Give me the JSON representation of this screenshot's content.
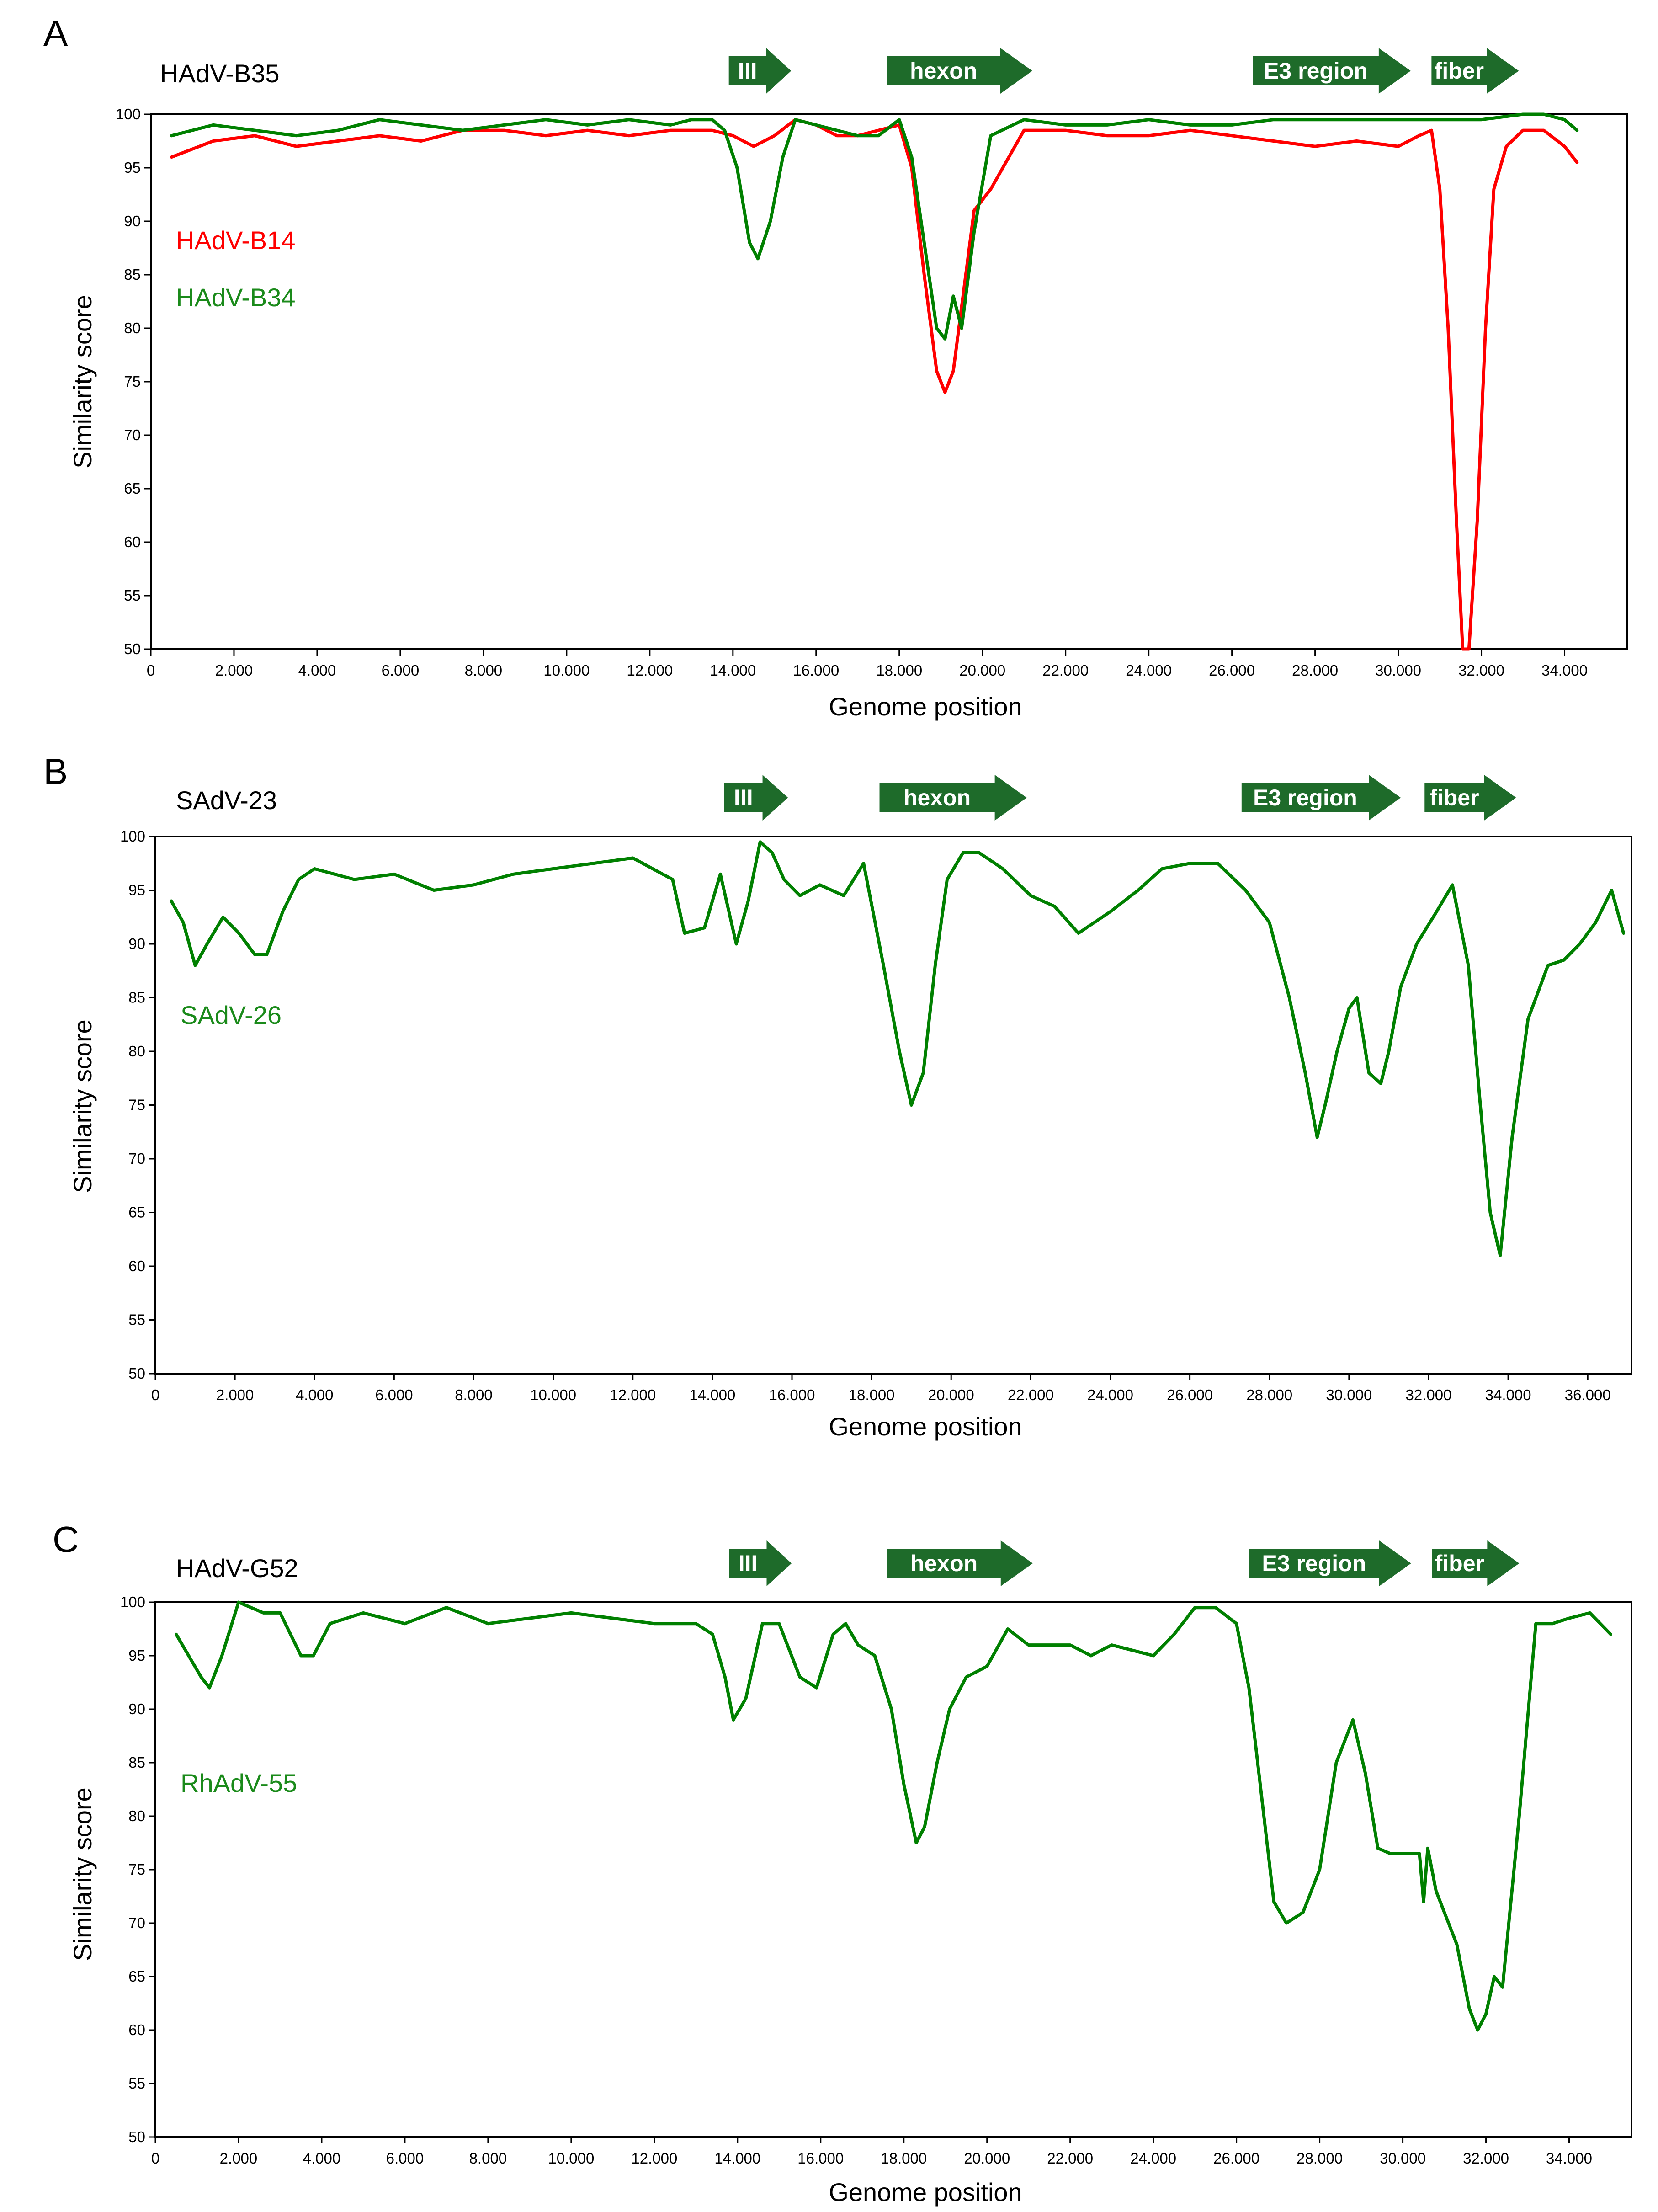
{
  "chart_data": [
    {
      "type": "line",
      "panel": "A",
      "reference": "HAdV-B35",
      "xlabel": "Genome position",
      "ylabel": "Similarity score",
      "xlim": [
        0,
        35500
      ],
      "ylim": [
        50,
        100
      ],
      "x_ticks": [
        "0",
        "2.000",
        "4.000",
        "6.000",
        "8.000",
        "10.000",
        "12.000",
        "14.000",
        "16.000",
        "18.000",
        "20.000",
        "22.000",
        "24.000",
        "26.000",
        "28.000",
        "30.000",
        "32.000",
        "34.000"
      ],
      "y_ticks": [
        "50",
        "55",
        "60",
        "65",
        "70",
        "75",
        "80",
        "85",
        "90",
        "95",
        "100"
      ],
      "genes": [
        {
          "label": "III",
          "start": 13900,
          "end": 15400
        },
        {
          "label": "hexon",
          "start": 17700,
          "end": 21200
        },
        {
          "label": "E3 region",
          "start": 26500,
          "end": 30300
        },
        {
          "label": "fiber",
          "start": 30800,
          "end": 32900
        }
      ],
      "series": [
        {
          "name": "HAdV-B14",
          "color": "#ff0000",
          "x": [
            500,
            1500,
            2500,
            3500,
            4500,
            5500,
            6500,
            7500,
            8500,
            9500,
            10500,
            11500,
            12500,
            13000,
            13500,
            14000,
            14500,
            15000,
            15500,
            16000,
            16500,
            17000,
            17500,
            18000,
            18300,
            18600,
            18900,
            19100,
            19300,
            19500,
            19800,
            20200,
            21000,
            22000,
            23000,
            24000,
            25000,
            26000,
            27000,
            28000,
            29000,
            30000,
            30500,
            30800,
            31000,
            31200,
            31400,
            31550,
            31700,
            31900,
            32100,
            32300,
            32600,
            33000,
            33500,
            34000,
            34300
          ],
          "values": [
            96,
            97.5,
            98,
            97,
            97.5,
            98,
            97.5,
            98.5,
            98.5,
            98,
            98.5,
            98,
            98.5,
            98.5,
            98.5,
            98,
            97,
            98,
            99.5,
            99,
            98,
            98,
            98.5,
            99,
            95,
            85,
            76,
            74,
            76,
            82,
            91,
            93,
            98.5,
            98.5,
            98,
            98,
            98.5,
            98,
            97.5,
            97,
            97.5,
            97,
            98,
            98.5,
            93,
            80,
            62,
            50,
            50,
            62,
            80,
            93,
            97,
            98.5,
            98.5,
            97,
            95.5
          ]
        },
        {
          "name": "HAdV-B34",
          "color": "#008000",
          "x": [
            500,
            1500,
            2500,
            3500,
            4500,
            5500,
            6500,
            7500,
            8500,
            9500,
            10500,
            11500,
            12500,
            13000,
            13500,
            13800,
            14100,
            14400,
            14600,
            14900,
            15200,
            15500,
            16000,
            16500,
            17000,
            17500,
            18000,
            18300,
            18600,
            18900,
            19100,
            19300,
            19500,
            19800,
            20200,
            21000,
            22000,
            23000,
            24000,
            25000,
            26000,
            27000,
            28000,
            29000,
            30000,
            31000,
            32000,
            33000,
            33500,
            34000,
            34300
          ],
          "values": [
            98,
            99,
            98.5,
            98,
            98.5,
            99.5,
            99,
            98.5,
            99,
            99.5,
            99,
            99.5,
            99,
            99.5,
            99.5,
            98.5,
            95,
            88,
            86.5,
            90,
            96,
            99.5,
            99,
            98.5,
            98,
            98,
            99.5,
            96,
            88,
            80,
            79,
            83,
            80,
            89,
            98,
            99.5,
            99,
            99,
            99.5,
            99,
            99,
            99.5,
            99.5,
            99.5,
            99.5,
            99.5,
            99.5,
            100,
            100,
            99.5,
            98.5
          ]
        }
      ]
    },
    {
      "type": "line",
      "panel": "B",
      "reference": "SAdV-23",
      "xlabel": "Genome position",
      "ylabel": "Similarity score",
      "xlim": [
        0,
        37100
      ],
      "ylim": [
        50,
        100
      ],
      "x_ticks": [
        "0",
        "2.000",
        "4.000",
        "6.000",
        "8.000",
        "10.000",
        "12.000",
        "14.000",
        "16.000",
        "18.000",
        "20.000",
        "22.000",
        "24.000",
        "26.000",
        "28.000",
        "30.000",
        "32.000",
        "34.000",
        "36.000"
      ],
      "y_ticks": [
        "50",
        "55",
        "60",
        "65",
        "70",
        "75",
        "80",
        "85",
        "90",
        "95",
        "100"
      ],
      "genes": [
        {
          "label": "III",
          "start": 14300,
          "end": 15900
        },
        {
          "label": "hexon",
          "start": 18200,
          "end": 21900
        },
        {
          "label": "E3 region",
          "start": 27300,
          "end": 31300
        },
        {
          "label": "fiber",
          "start": 31900,
          "end": 34200
        }
      ],
      "series": [
        {
          "name": "SAdV-26",
          "color": "#008000",
          "x": [
            400,
            700,
            1000,
            1300,
            1700,
            2100,
            2500,
            2800,
            3200,
            3600,
            4000,
            5000,
            6000,
            7000,
            8000,
            9000,
            10000,
            11000,
            12000,
            13000,
            13300,
            13800,
            14200,
            14600,
            14900,
            15200,
            15500,
            15800,
            16200,
            16700,
            17300,
            17800,
            18300,
            18700,
            19000,
            19300,
            19600,
            19900,
            20300,
            20700,
            21300,
            22000,
            22600,
            23200,
            24000,
            24700,
            25300,
            26000,
            26700,
            27400,
            28000,
            28500,
            28900,
            29200,
            29400,
            29700,
            30000,
            30200,
            30500,
            30800,
            31000,
            31300,
            31700,
            32200,
            32600,
            33000,
            33300,
            33550,
            33800,
            34100,
            34500,
            35000,
            35400,
            35800,
            36200,
            36600,
            36900
          ],
          "values": [
            94,
            92,
            88,
            90,
            92.5,
            91,
            89,
            89,
            93,
            96,
            97,
            96,
            96.5,
            95,
            95.5,
            96.5,
            97,
            97.5,
            98,
            96,
            91,
            91.5,
            96.5,
            90,
            94,
            99.5,
            98.5,
            96,
            94.5,
            95.5,
            94.5,
            97.5,
            88,
            80,
            75,
            78,
            88,
            96,
            98.5,
            98.5,
            97,
            94.5,
            93.5,
            91,
            93,
            95,
            97,
            97.5,
            97.5,
            95,
            92,
            85,
            78,
            72,
            75,
            80,
            84,
            85,
            78,
            77,
            80,
            86,
            90,
            93,
            95.5,
            88,
            75,
            65,
            61,
            72,
            83,
            88,
            88.5,
            90,
            92,
            95,
            91
          ]
        }
      ]
    },
    {
      "type": "line",
      "panel": "C",
      "reference": "HAdV-G52",
      "xlabel": "Genome position",
      "ylabel": "Similarity score",
      "xlim": [
        0,
        35500
      ],
      "ylim": [
        50,
        100
      ],
      "x_ticks": [
        "0",
        "2.000",
        "4.000",
        "6.000",
        "8.000",
        "10.000",
        "12.000",
        "14.000",
        "16.000",
        "18.000",
        "20.000",
        "22.000",
        "24.000",
        "26.000",
        "28.000",
        "30.000",
        "32.000",
        "34.000"
      ],
      "y_ticks": [
        "50",
        "55",
        "60",
        "65",
        "70",
        "75",
        "80",
        "85",
        "90",
        "95",
        "100"
      ],
      "genes": [
        {
          "label": "III",
          "start": 13800,
          "end": 15300
        },
        {
          "label": "hexon",
          "start": 17600,
          "end": 21100
        },
        {
          "label": "E3 region",
          "start": 26300,
          "end": 30200
        },
        {
          "label": "fiber",
          "start": 30700,
          "end": 32800
        }
      ],
      "series": [
        {
          "name": "RhAdV-55",
          "color": "#008000",
          "x": [
            500,
            800,
            1100,
            1300,
            1600,
            2000,
            2600,
            3000,
            3500,
            3800,
            4200,
            5000,
            6000,
            7000,
            8000,
            9000,
            10000,
            11000,
            12000,
            13000,
            13400,
            13700,
            13900,
            14200,
            14600,
            15000,
            15500,
            15900,
            16300,
            16600,
            16900,
            17300,
            17700,
            18000,
            18300,
            18500,
            18800,
            19100,
            19500,
            20000,
            20500,
            21000,
            21500,
            22000,
            22500,
            23000,
            23500,
            24000,
            24500,
            25000,
            25500,
            26000,
            26300,
            26600,
            26900,
            27200,
            27600,
            28000,
            28400,
            28800,
            29100,
            29400,
            29700,
            30000,
            30400,
            30500,
            30600,
            30800,
            31000,
            31300,
            31600,
            31800,
            32000,
            32200,
            32400,
            32800,
            33200,
            33600,
            34000,
            34500,
            35000
          ],
          "values": [
            97,
            95,
            93,
            92,
            95,
            100,
            99,
            99,
            95,
            95,
            98,
            99,
            98,
            99.5,
            98,
            98.5,
            99,
            98.5,
            98,
            98,
            97,
            93,
            89,
            91,
            98,
            98,
            93,
            92,
            97,
            98,
            96,
            95,
            90,
            83,
            77.5,
            79,
            85,
            90,
            93,
            94,
            97.5,
            96,
            96,
            96,
            95,
            96,
            95.5,
            95,
            97,
            99.5,
            99.5,
            98,
            92,
            82,
            72,
            70,
            71,
            75,
            85,
            89,
            84,
            77,
            76.5,
            76.5,
            76.5,
            72,
            77,
            73,
            71,
            68,
            62,
            60,
            61.5,
            65,
            64,
            80,
            98,
            98,
            98.5,
            99,
            97
          ]
        }
      ]
    }
  ]
}
